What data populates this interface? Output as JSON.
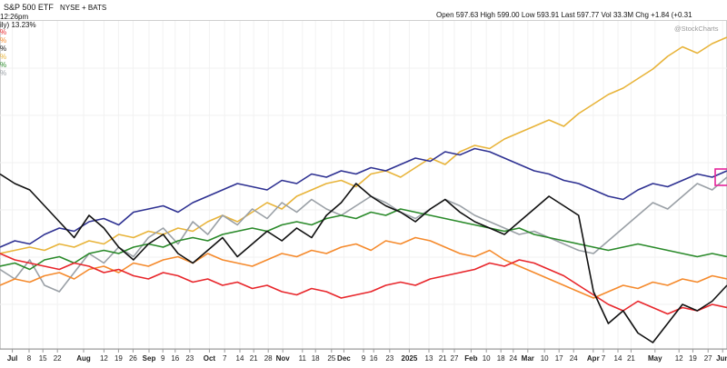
{
  "header": {
    "symbol": "S&P 500 ETF",
    "exchange": "NYSE + BATS",
    "time": "12:26pm",
    "subtitle": "ily) 13.23%",
    "quote": "Open 597.63  High 599.00  Low 593.91  Last 597.77  Vol 33.3M  Chg +1.84 (+0.31",
    "watermark": "@StockCharts",
    "legend_marks": [
      {
        "text": "%",
        "color": "#e8262b"
      },
      {
        "text": "%",
        "color": "#f58a2c"
      },
      {
        "text": "%",
        "color": "#111111"
      },
      {
        "text": "%",
        "color": "#e8b43a"
      },
      {
        "text": "%",
        "color": "#2a8a2a"
      },
      {
        "text": "%",
        "color": "#9aa0a6"
      }
    ]
  },
  "chart_data": {
    "type": "line",
    "x_range": [
      0,
      1
    ],
    "y_range": [
      0,
      1
    ],
    "grid": "vertical and horizontal",
    "axis_labels": [
      {
        "text": "Jul",
        "pos": 0.017
      },
      {
        "text": "8",
        "pos": 0.04
      },
      {
        "text": "15",
        "pos": 0.059
      },
      {
        "text": "22",
        "pos": 0.079
      },
      {
        "text": "Aug",
        "pos": 0.115
      },
      {
        "text": "12",
        "pos": 0.143
      },
      {
        "text": "19",
        "pos": 0.163
      },
      {
        "text": "26",
        "pos": 0.183
      },
      {
        "text": "Sep",
        "pos": 0.205
      },
      {
        "text": "9",
        "pos": 0.224
      },
      {
        "text": "16",
        "pos": 0.241
      },
      {
        "text": "23",
        "pos": 0.261
      },
      {
        "text": "Oct",
        "pos": 0.288
      },
      {
        "text": "7",
        "pos": 0.309
      },
      {
        "text": "14",
        "pos": 0.33
      },
      {
        "text": "21",
        "pos": 0.349
      },
      {
        "text": "28",
        "pos": 0.369
      },
      {
        "text": "Nov",
        "pos": 0.389
      },
      {
        "text": "11",
        "pos": 0.416
      },
      {
        "text": "18",
        "pos": 0.434
      },
      {
        "text": "25",
        "pos": 0.456
      },
      {
        "text": "Dec",
        "pos": 0.473
      },
      {
        "text": "9",
        "pos": 0.5
      },
      {
        "text": "16",
        "pos": 0.514
      },
      {
        "text": "23",
        "pos": 0.536
      },
      {
        "text": "2025",
        "pos": 0.563
      },
      {
        "text": "13",
        "pos": 0.59
      },
      {
        "text": "21",
        "pos": 0.609
      },
      {
        "text": "27",
        "pos": 0.625
      },
      {
        "text": "Feb",
        "pos": 0.648
      },
      {
        "text": "10",
        "pos": 0.669
      },
      {
        "text": "18",
        "pos": 0.689
      },
      {
        "text": "24",
        "pos": 0.706
      },
      {
        "text": "Mar",
        "pos": 0.726
      },
      {
        "text": "10",
        "pos": 0.749
      },
      {
        "text": "17",
        "pos": 0.769
      },
      {
        "text": "24",
        "pos": 0.789
      },
      {
        "text": "Apr",
        "pos": 0.816
      },
      {
        "text": "7",
        "pos": 0.83
      },
      {
        "text": "14",
        "pos": 0.85
      },
      {
        "text": "21",
        "pos": 0.868
      },
      {
        "text": "May",
        "pos": 0.901
      },
      {
        "text": "12",
        "pos": 0.934
      },
      {
        "text": "19",
        "pos": 0.953
      },
      {
        "text": "27",
        "pos": 0.974
      },
      {
        "text": "Jun",
        "pos": 0.994
      }
    ],
    "series": [
      {
        "color": "#e8b43a",
        "values": [
          0.3,
          0.31,
          0.32,
          0.31,
          0.33,
          0.32,
          0.34,
          0.33,
          0.36,
          0.35,
          0.37,
          0.36,
          0.38,
          0.37,
          0.4,
          0.42,
          0.4,
          0.43,
          0.46,
          0.44,
          0.48,
          0.5,
          0.52,
          0.53,
          0.51,
          0.55,
          0.56,
          0.54,
          0.57,
          0.6,
          0.58,
          0.62,
          0.64,
          0.63,
          0.66,
          0.68,
          0.7,
          0.72,
          0.7,
          0.74,
          0.77,
          0.8,
          0.82,
          0.85,
          0.88,
          0.92,
          0.95,
          0.93,
          0.96,
          0.98
        ]
      },
      {
        "color": "#2e3192",
        "values": [
          0.32,
          0.34,
          0.33,
          0.36,
          0.38,
          0.37,
          0.4,
          0.41,
          0.39,
          0.43,
          0.44,
          0.45,
          0.43,
          0.46,
          0.48,
          0.5,
          0.52,
          0.51,
          0.5,
          0.53,
          0.52,
          0.55,
          0.54,
          0.56,
          0.55,
          0.57,
          0.56,
          0.58,
          0.6,
          0.59,
          0.62,
          0.61,
          0.63,
          0.62,
          0.6,
          0.58,
          0.56,
          0.55,
          0.53,
          0.52,
          0.5,
          0.48,
          0.47,
          0.5,
          0.52,
          0.51,
          0.53,
          0.55,
          0.54,
          0.56
        ]
      },
      {
        "color": "#9aa0a6",
        "values": [
          0.25,
          0.22,
          0.28,
          0.2,
          0.18,
          0.24,
          0.3,
          0.27,
          0.32,
          0.29,
          0.35,
          0.38,
          0.33,
          0.4,
          0.36,
          0.42,
          0.39,
          0.44,
          0.41,
          0.46,
          0.43,
          0.47,
          0.44,
          0.42,
          0.45,
          0.48,
          0.46,
          0.43,
          0.41,
          0.44,
          0.47,
          0.45,
          0.42,
          0.4,
          0.38,
          0.36,
          0.37,
          0.35,
          0.33,
          0.31,
          0.3,
          0.34,
          0.38,
          0.42,
          0.46,
          0.44,
          0.48,
          0.52,
          0.5,
          0.54
        ]
      },
      {
        "color": "#2a8a2a",
        "values": [
          0.26,
          0.27,
          0.25,
          0.28,
          0.29,
          0.27,
          0.3,
          0.31,
          0.3,
          0.32,
          0.33,
          0.32,
          0.34,
          0.35,
          0.34,
          0.36,
          0.37,
          0.38,
          0.37,
          0.39,
          0.4,
          0.39,
          0.41,
          0.42,
          0.41,
          0.43,
          0.42,
          0.44,
          0.43,
          0.42,
          0.41,
          0.4,
          0.39,
          0.38,
          0.37,
          0.38,
          0.36,
          0.35,
          0.34,
          0.33,
          0.32,
          0.31,
          0.32,
          0.33,
          0.32,
          0.31,
          0.3,
          0.29,
          0.3,
          0.29
        ]
      },
      {
        "color": "#f58a2c",
        "values": [
          0.2,
          0.22,
          0.21,
          0.23,
          0.24,
          0.22,
          0.25,
          0.26,
          0.24,
          0.27,
          0.26,
          0.28,
          0.29,
          0.27,
          0.3,
          0.28,
          0.27,
          0.26,
          0.28,
          0.3,
          0.29,
          0.31,
          0.3,
          0.32,
          0.33,
          0.31,
          0.34,
          0.33,
          0.35,
          0.34,
          0.32,
          0.3,
          0.29,
          0.31,
          0.28,
          0.26,
          0.24,
          0.22,
          0.2,
          0.18,
          0.16,
          0.18,
          0.2,
          0.19,
          0.21,
          0.2,
          0.22,
          0.21,
          0.23,
          0.22
        ]
      },
      {
        "color": "#e8262b",
        "values": [
          0.3,
          0.28,
          0.27,
          0.26,
          0.25,
          0.27,
          0.26,
          0.24,
          0.25,
          0.23,
          0.22,
          0.24,
          0.23,
          0.21,
          0.22,
          0.2,
          0.21,
          0.19,
          0.2,
          0.18,
          0.17,
          0.19,
          0.18,
          0.16,
          0.17,
          0.18,
          0.2,
          0.21,
          0.2,
          0.22,
          0.23,
          0.24,
          0.25,
          0.27,
          0.26,
          0.28,
          0.27,
          0.25,
          0.23,
          0.2,
          0.17,
          0.14,
          0.12,
          0.15,
          0.13,
          0.11,
          0.13,
          0.12,
          0.14,
          0.13
        ]
      },
      {
        "color": "#111111",
        "values": [
          0.55,
          0.52,
          0.5,
          0.45,
          0.4,
          0.35,
          0.42,
          0.38,
          0.32,
          0.28,
          0.33,
          0.36,
          0.3,
          0.27,
          0.31,
          0.35,
          0.29,
          0.33,
          0.37,
          0.34,
          0.38,
          0.35,
          0.42,
          0.46,
          0.52,
          0.48,
          0.45,
          0.43,
          0.4,
          0.44,
          0.47,
          0.43,
          0.4,
          0.38,
          0.36,
          0.4,
          0.44,
          0.48,
          0.45,
          0.42,
          0.18,
          0.08,
          0.12,
          0.05,
          0.02,
          0.08,
          0.14,
          0.12,
          0.15,
          0.2
        ]
      }
    ]
  }
}
